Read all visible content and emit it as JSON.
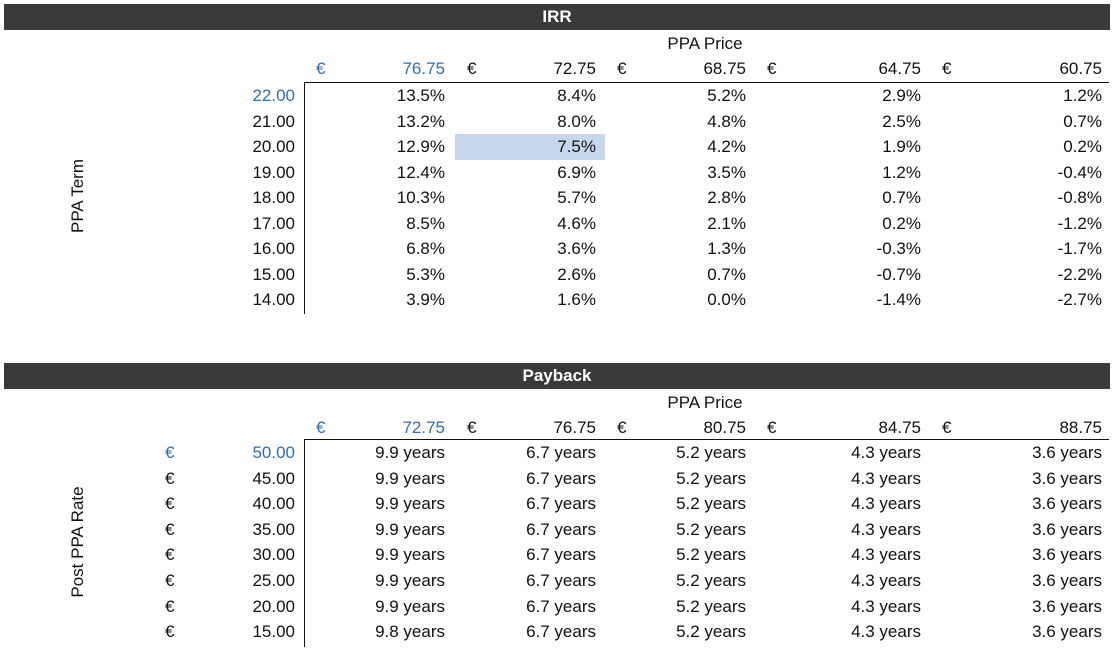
{
  "irr": {
    "title": "IRR",
    "col_header": "PPA Price",
    "row_header": "PPA Term",
    "currency": "€",
    "prices": [
      "76.75",
      "72.75",
      "68.75",
      "64.75",
      "60.75"
    ],
    "rows": [
      {
        "term": "22.00",
        "values": [
          "13.5%",
          "8.4%",
          "5.2%",
          "2.9%",
          "1.2%"
        ]
      },
      {
        "term": "21.00",
        "values": [
          "13.2%",
          "8.0%",
          "4.8%",
          "2.5%",
          "0.7%"
        ]
      },
      {
        "term": "20.00",
        "values": [
          "12.9%",
          "7.5%",
          "4.2%",
          "1.9%",
          "0.2%"
        ]
      },
      {
        "term": "19.00",
        "values": [
          "12.4%",
          "6.9%",
          "3.5%",
          "1.2%",
          "-0.4%"
        ]
      },
      {
        "term": "18.00",
        "values": [
          "10.3%",
          "5.7%",
          "2.8%",
          "0.7%",
          "-0.8%"
        ]
      },
      {
        "term": "17.00",
        "values": [
          "8.5%",
          "4.6%",
          "2.1%",
          "0.2%",
          "-1.2%"
        ]
      },
      {
        "term": "16.00",
        "values": [
          "6.8%",
          "3.6%",
          "1.3%",
          "-0.3%",
          "-1.7%"
        ]
      },
      {
        "term": "15.00",
        "values": [
          "5.3%",
          "2.6%",
          "0.7%",
          "-0.7%",
          "-2.2%"
        ]
      },
      {
        "term": "14.00",
        "values": [
          "3.9%",
          "1.6%",
          "0.0%",
          "-1.4%",
          "-2.7%"
        ]
      }
    ],
    "highlight": {
      "row": 2,
      "col": 1,
      "color": "#c5d7ec"
    }
  },
  "payback": {
    "title": "Payback",
    "col_header": "PPA Price",
    "row_header": "Post PPA Rate",
    "currency": "€",
    "prices": [
      "72.75",
      "76.75",
      "80.75",
      "84.75",
      "88.75"
    ],
    "rows": [
      {
        "rate": "50.00",
        "values": [
          "9.9 years",
          "6.7 years",
          "5.2 years",
          "4.3 years",
          "3.6 years"
        ]
      },
      {
        "rate": "45.00",
        "values": [
          "9.9 years",
          "6.7 years",
          "5.2 years",
          "4.3 years",
          "3.6 years"
        ]
      },
      {
        "rate": "40.00",
        "values": [
          "9.9 years",
          "6.7 years",
          "5.2 years",
          "4.3 years",
          "3.6 years"
        ]
      },
      {
        "rate": "35.00",
        "values": [
          "9.9 years",
          "6.7 years",
          "5.2 years",
          "4.3 years",
          "3.6 years"
        ]
      },
      {
        "rate": "30.00",
        "values": [
          "9.9 years",
          "6.7 years",
          "5.2 years",
          "4.3 years",
          "3.6 years"
        ]
      },
      {
        "rate": "25.00",
        "values": [
          "9.9 years",
          "6.7 years",
          "5.2 years",
          "4.3 years",
          "3.6 years"
        ]
      },
      {
        "rate": "20.00",
        "values": [
          "9.9 years",
          "6.7 years",
          "5.2 years",
          "4.3 years",
          "3.6 years"
        ]
      },
      {
        "rate": "15.00",
        "values": [
          "9.8 years",
          "6.7 years",
          "5.2 years",
          "4.3 years",
          "3.6 years"
        ]
      }
    ]
  },
  "colors": {
    "band": "#3a3a3a",
    "input_blue": "#2e6db5",
    "highlight": "#c5d7ec"
  }
}
